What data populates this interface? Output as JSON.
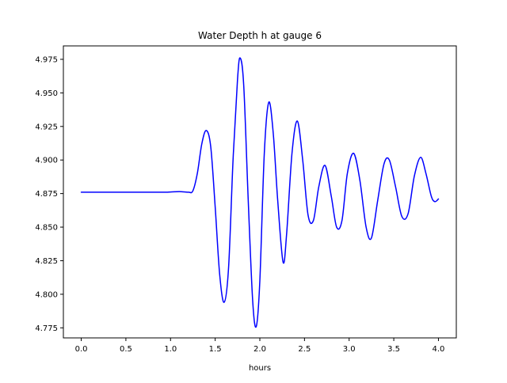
{
  "chart_data": {
    "type": "line",
    "title": "Water Depth h at gauge 6",
    "xlabel": "hours",
    "ylabel": "",
    "xlim": [
      -0.2,
      4.2
    ],
    "ylim": [
      4.7675,
      4.985
    ],
    "grid": false,
    "legend": "none",
    "x_ticks": [
      0.0,
      0.5,
      1.0,
      1.5,
      2.0,
      2.5,
      3.0,
      3.5,
      4.0
    ],
    "x_tick_labels": [
      "0.0",
      "0.5",
      "1.0",
      "1.5",
      "2.0",
      "2.5",
      "3.0",
      "3.5",
      "4.0"
    ],
    "y_ticks": [
      4.775,
      4.8,
      4.825,
      4.85,
      4.875,
      4.9,
      4.925,
      4.95,
      4.975
    ],
    "y_tick_labels": [
      "4.775",
      "4.800",
      "4.825",
      "4.850",
      "4.875",
      "4.900",
      "4.925",
      "4.950",
      "4.975"
    ],
    "series": [
      {
        "name": "",
        "color": "#0000ff",
        "x": [
          0.0,
          0.5,
          0.9,
          1.0,
          1.1,
          1.2,
          1.25,
          1.3,
          1.35,
          1.4,
          1.45,
          1.5,
          1.55,
          1.6,
          1.65,
          1.7,
          1.75,
          1.78,
          1.82,
          1.87,
          1.92,
          1.96,
          2.0,
          2.05,
          2.1,
          2.15,
          2.2,
          2.26,
          2.3,
          2.36,
          2.42,
          2.48,
          2.54,
          2.6,
          2.66,
          2.73,
          2.8,
          2.86,
          2.92,
          2.98,
          3.05,
          3.12,
          3.19,
          3.25,
          3.32,
          3.39,
          3.45,
          3.52,
          3.59,
          3.66,
          3.73,
          3.8,
          3.86,
          3.92,
          3.96,
          4.0
        ],
        "values": [
          4.876,
          4.876,
          4.876,
          4.8762,
          4.8765,
          4.876,
          4.877,
          4.89,
          4.912,
          4.922,
          4.91,
          4.865,
          4.815,
          4.794,
          4.82,
          4.9,
          4.96,
          4.976,
          4.955,
          4.87,
          4.795,
          4.776,
          4.81,
          4.905,
          4.943,
          4.92,
          4.87,
          4.824,
          4.845,
          4.905,
          4.929,
          4.9,
          4.859,
          4.855,
          4.88,
          4.896,
          4.873,
          4.85,
          4.855,
          4.89,
          4.905,
          4.885,
          4.85,
          4.842,
          4.87,
          4.897,
          4.9,
          4.88,
          4.858,
          4.86,
          4.888,
          4.902,
          4.89,
          4.873,
          4.869,
          4.871
        ]
      }
    ]
  }
}
